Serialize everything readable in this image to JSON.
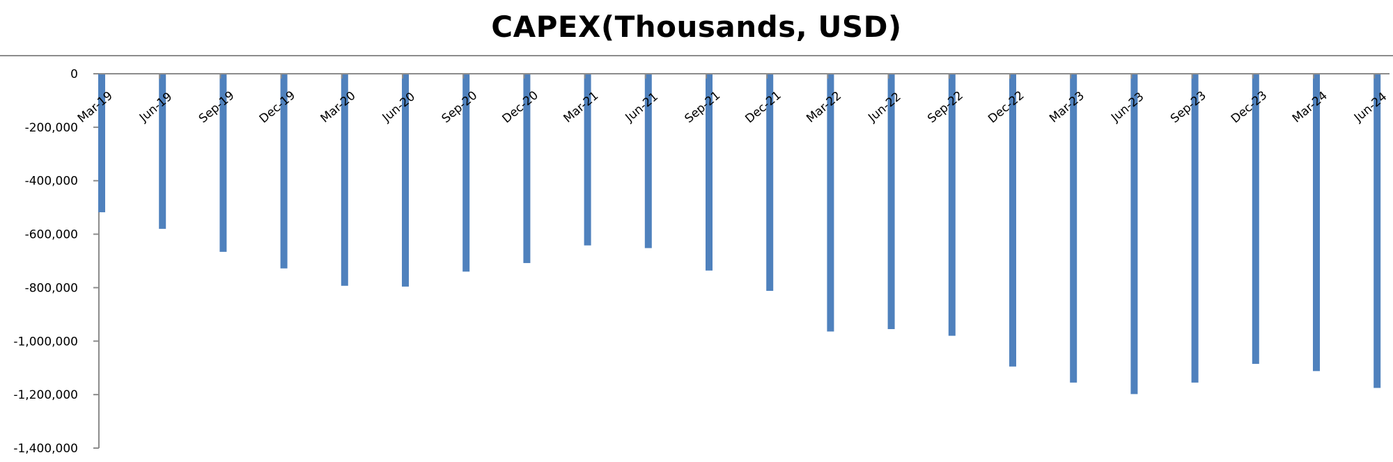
{
  "chart_data": {
    "type": "bar",
    "title": "CAPEX(Thousands, USD)",
    "xlabel": "",
    "ylabel": "",
    "categories": [
      "Mar-19",
      "Jun-19",
      "Sep-19",
      "Dec-19",
      "Mar-20",
      "Jun-20",
      "Sep-20",
      "Dec-20",
      "Mar-21",
      "Jun-21",
      "Sep-21",
      "Dec-21",
      "Mar-22",
      "Jun-22",
      "Sep-22",
      "Dec-22",
      "Mar-23",
      "Jun-23",
      "Sep-23",
      "Dec-23",
      "Mar-24",
      "Jun-24"
    ],
    "values": [
      -518000,
      -580000,
      -666000,
      -728000,
      -793000,
      -796000,
      -740000,
      -708000,
      -642000,
      -652000,
      -736000,
      -812000,
      -964000,
      -955000,
      -980000,
      -1095000,
      -1155000,
      -1198000,
      -1155000,
      -1085000,
      -1112000,
      -1175000
    ],
    "ylim": [
      -1400000,
      0
    ],
    "yticks": [
      0,
      -200000,
      -400000,
      -600000,
      -800000,
      -1000000,
      -1200000,
      -1400000
    ],
    "ytick_labels": [
      "0",
      "-200,000",
      "-400,000",
      "-600,000",
      "-800,000",
      "-1,000,000",
      "-1,200,000",
      "-1,400,000"
    ],
    "grid": false,
    "legend": "none",
    "bar_color": "#4f81bd",
    "axis_color": "#8c8c8c"
  }
}
